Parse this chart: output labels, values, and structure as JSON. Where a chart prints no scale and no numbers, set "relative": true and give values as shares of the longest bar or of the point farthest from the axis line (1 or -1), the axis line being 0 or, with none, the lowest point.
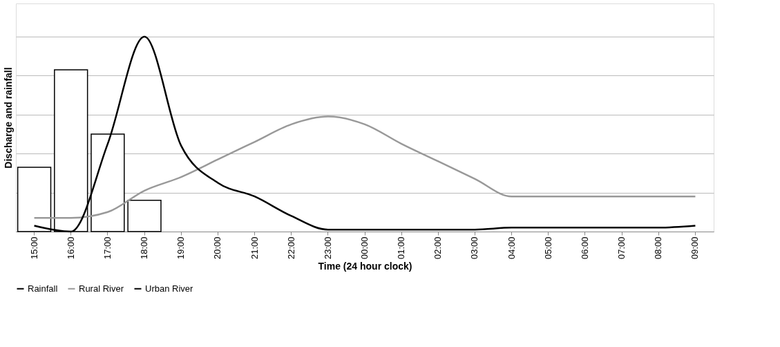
{
  "chart_data": {
    "type": "line",
    "relative": true,
    "xlabel": "Time (24 hour clock)",
    "ylabel": "Discharge and rainfall",
    "categories": [
      "15:00",
      "16:00",
      "17:00",
      "18:00",
      "19:00",
      "20:00",
      "21:00",
      "22:00",
      "23:00",
      "00:00",
      "01:00",
      "02:00",
      "03:00",
      "04:00",
      "05:00",
      "06:00",
      "07:00",
      "08:00",
      "09:00"
    ],
    "series": [
      {
        "name": "Rainfall",
        "type": "bar",
        "color": "#000000",
        "values": [
          0.33,
          0.83,
          0.5,
          0.16,
          null,
          null,
          null,
          null,
          null,
          null,
          null,
          null,
          null,
          null,
          null,
          null,
          null,
          null,
          null
        ]
      },
      {
        "name": "Rural River",
        "color": "#999999",
        "values": [
          0.07,
          0.07,
          0.1,
          0.21,
          0.28,
          0.37,
          0.46,
          0.55,
          0.59,
          0.55,
          0.45,
          0.36,
          0.27,
          0.18,
          0.18,
          0.18,
          0.18,
          0.18,
          0.18
        ]
      },
      {
        "name": "Urban River",
        "color": "#000000",
        "values": [
          0.03,
          0.0,
          0.45,
          1.0,
          0.44,
          0.25,
          0.18,
          0.08,
          0.01,
          0.01,
          0.01,
          0.01,
          0.01,
          0.02,
          0.02,
          0.02,
          0.02,
          0.02,
          0.03
        ]
      }
    ],
    "grid": "y",
    "legend": "bottom",
    "marker": "none",
    "line_style": "solid"
  }
}
